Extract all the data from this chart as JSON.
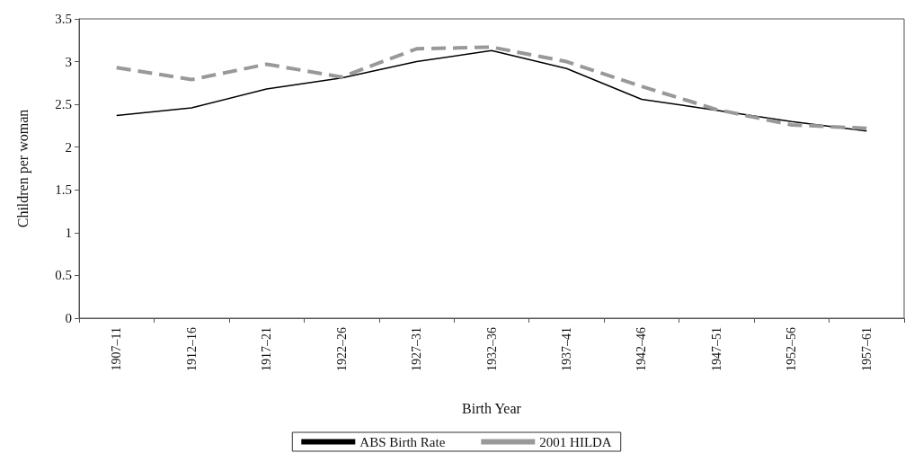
{
  "chart_data": {
    "type": "line",
    "xlabel": "Birth Year",
    "ylabel": "Children per woman",
    "categories": [
      "1907–11",
      "1912–16",
      "1917–21",
      "1922–26",
      "1927–31",
      "1932–36",
      "1937–41",
      "1942–46",
      "1947–51",
      "1952–56",
      "1957–61"
    ],
    "series": [
      {
        "name": "ABS Birth Rate",
        "color": "#000000",
        "line_style": "solid",
        "values": [
          2.37,
          2.46,
          2.68,
          2.81,
          3.0,
          3.13,
          2.92,
          2.56,
          2.43,
          2.3,
          2.19
        ]
      },
      {
        "name": "2001 HILDA",
        "color": "#999999",
        "line_style": "dashed",
        "values": [
          2.93,
          2.79,
          2.97,
          2.82,
          3.15,
          3.17,
          3.0,
          2.71,
          2.44,
          2.26,
          2.22
        ]
      }
    ],
    "ylim": [
      0,
      3.5
    ],
    "yticks": [
      0,
      0.5,
      1,
      1.5,
      2,
      2.5,
      3,
      3.5
    ],
    "grid": false,
    "legend": "bottom",
    "marker": "none"
  }
}
